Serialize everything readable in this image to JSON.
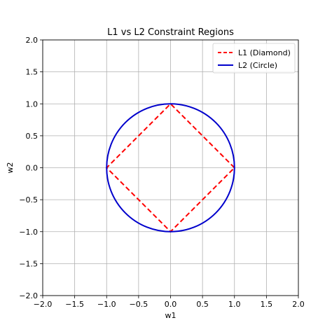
{
  "chart_data": {
    "type": "line",
    "title": "L1 vs L2 Constraint Regions",
    "xlabel": "w1",
    "ylabel": "w2",
    "xlim": [
      -2.0,
      2.0
    ],
    "ylim": [
      -2.0,
      2.0
    ],
    "xticks": [
      -2.0,
      -1.5,
      -1.0,
      -0.5,
      0.0,
      0.5,
      1.0,
      1.5,
      2.0
    ],
    "yticks": [
      -2.0,
      -1.5,
      -1.0,
      -0.5,
      0.0,
      0.5,
      1.0,
      1.5,
      2.0
    ],
    "xtick_labels": [
      "−2.0",
      "−1.5",
      "−1.0",
      "−0.5",
      "0.0",
      "0.5",
      "1.0",
      "1.5",
      "2.0"
    ],
    "ytick_labels": [
      "−2.0",
      "−1.5",
      "−1.0",
      "−0.5",
      "0.0",
      "0.5",
      "1.0",
      "1.5",
      "2.0"
    ],
    "grid": true,
    "legend_position": "top-right",
    "series": [
      {
        "name": "L1 (Diamond)",
        "color": "#ff0000",
        "linestyle": "dashed",
        "points": [
          [
            1,
            0
          ],
          [
            0,
            1
          ],
          [
            -1,
            0
          ],
          [
            0,
            -1
          ],
          [
            1,
            0
          ]
        ]
      },
      {
        "name": "L2 (Circle)",
        "color": "#0000cc",
        "linestyle": "solid",
        "shape": "circle",
        "center": [
          0,
          0
        ],
        "radius": 1
      }
    ]
  }
}
